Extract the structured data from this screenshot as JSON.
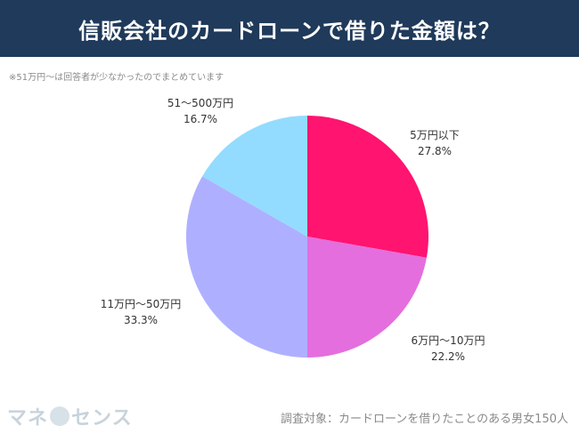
{
  "title": "信販会社のカードローンで借りた金額は？",
  "note": "※51万円〜は回答者が少なかったのでまとめています",
  "chart_data": {
    "type": "pie",
    "slices": [
      {
        "label": "5万円以下",
        "value": 27.8,
        "value_label": "27.8%",
        "color": "#ff1470"
      },
      {
        "label": "6万円〜10万円",
        "value": 22.2,
        "value_label": "22.2%",
        "color": "#e46ede"
      },
      {
        "label": "11万円〜50万円",
        "value": 33.3,
        "value_label": "33.3%",
        "color": "#aeb0ff"
      },
      {
        "label": "51〜500万円",
        "value": 16.7,
        "value_label": "16.7%",
        "color": "#93dcff"
      }
    ]
  },
  "footer": {
    "logo_text_left": "マネ",
    "logo_text_right": "センス",
    "survey": "調査対象：カードローンを借りたことのある男女150人"
  }
}
